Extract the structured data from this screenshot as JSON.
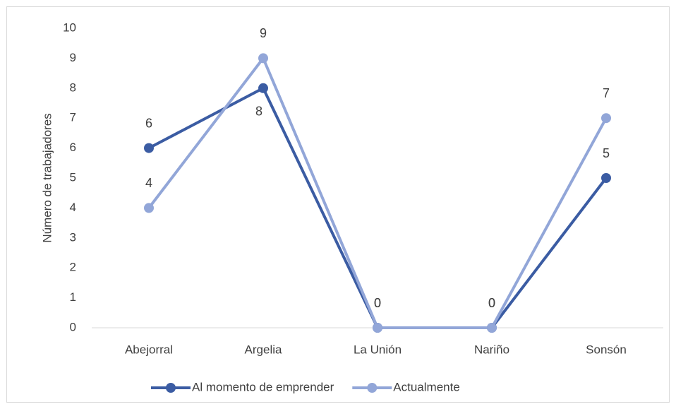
{
  "chart_data": {
    "type": "line",
    "y_label": "Número de trabajadores",
    "categories": [
      "Abejorral",
      "Argelia",
      "La Unión",
      "Nariño",
      "Sonsón"
    ],
    "series": [
      {
        "name": "Al momento de emprender",
        "color": "#3b5ca3",
        "values": [
          6,
          8,
          0,
          0,
          5
        ]
      },
      {
        "name": "Actualmente",
        "color": "#92a6d8",
        "values": [
          4,
          9,
          0,
          0,
          7
        ]
      }
    ],
    "ylim": [
      0,
      10
    ],
    "yticks": [
      0,
      1,
      2,
      3,
      4,
      5,
      6,
      7,
      8,
      9,
      10
    ],
    "grid": false,
    "legend": "bottom",
    "data_labels": true
  }
}
